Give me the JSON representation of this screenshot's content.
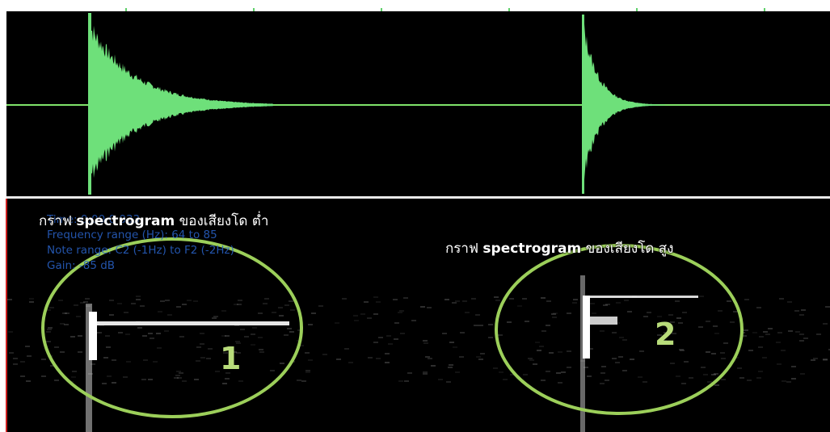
{
  "overlay": {
    "time": "Time: 0:00.0 033",
    "frequency_range": "Frequency range (Hz): 64 to 85",
    "note_range": "Note range: C2 (-1Hz) to F2 (-2Hz)",
    "gain": "Gain: -85 dB"
  },
  "annotations": {
    "low": {
      "prefix": "กราฟ ",
      "keyword": "spectrogram",
      "suffix": " ของเสียงโด ต่ำ"
    },
    "high": {
      "prefix": "กราฟ ",
      "keyword": "spectrogram",
      "suffix": " ของเสียงโด สูง"
    },
    "label_1": "1",
    "label_2": "2"
  },
  "colors": {
    "waveform": "#6ee07a",
    "center_line": "#7fe36a",
    "background": "#000000",
    "ellipse": "#9ccf5a",
    "overlay_text": "#2a63c9",
    "left_marker": "#cc1f1f"
  }
}
